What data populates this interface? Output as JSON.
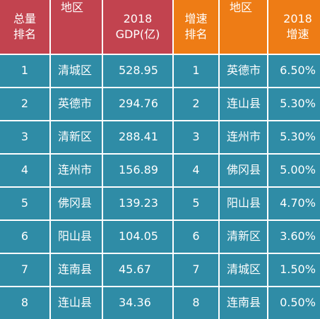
{
  "headers": [
    {
      "text": "总量\n排名",
      "color": "#c2434f"
    },
    {
      "text": "地区",
      "color": "#c2434f"
    },
    {
      "text": "2018\nGDP(亿)",
      "color": "#c2434f"
    },
    {
      "text": "增速\n排名",
      "color": "#ee7c15"
    },
    {
      "text": "地区",
      "color": "#ee7c15"
    },
    {
      "text": "2018\n增速",
      "color": "#ee7c15"
    }
  ],
  "body_color": "#2f8ca6",
  "rows": [
    {
      "rank": "1",
      "region": "清城区",
      "gdp": "528.95",
      "growth_rank": "1",
      "growth_region": "英德市",
      "growth": "6.50%"
    },
    {
      "rank": "2",
      "region": "英德市",
      "gdp": "294.76",
      "growth_rank": "2",
      "growth_region": "连山县",
      "growth": "5.30%"
    },
    {
      "rank": "3",
      "region": "清新区",
      "gdp": "288.41",
      "growth_rank": "3",
      "growth_region": "连州市",
      "growth": "5.30%"
    },
    {
      "rank": "4",
      "region": "连州市",
      "gdp": "156.89",
      "growth_rank": "4",
      "growth_region": "佛冈县",
      "growth": "5.00%"
    },
    {
      "rank": "5",
      "region": "佛冈县",
      "gdp": "139.23",
      "growth_rank": "5",
      "growth_region": "阳山县",
      "growth": "4.70%"
    },
    {
      "rank": "6",
      "region": "阳山县",
      "gdp": "104.05",
      "growth_rank": "6",
      "growth_region": "清新区",
      "growth": "3.60%"
    },
    {
      "rank": "7",
      "region": "连南县",
      "gdp": "45.67",
      "growth_rank": "7",
      "growth_region": "清城区",
      "growth": "1.50%"
    },
    {
      "rank": "8",
      "region": "连山县",
      "gdp": "34.36",
      "growth_rank": "8",
      "growth_region": "连南县",
      "growth": "0.50%"
    }
  ]
}
